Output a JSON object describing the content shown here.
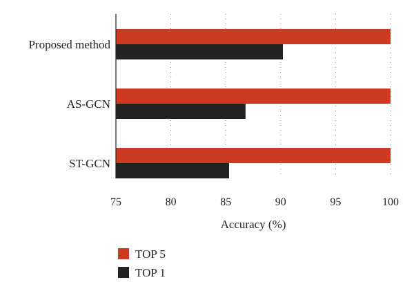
{
  "chart_data": {
    "type": "bar",
    "orientation": "horizontal",
    "categories": [
      "Proposed method",
      "AS-GCN",
      "ST-GCN"
    ],
    "series": [
      {
        "name": "TOP 5",
        "values": [
          100,
          100,
          100
        ],
        "color": "#cc3a22"
      },
      {
        "name": "TOP 1",
        "values": [
          90.2,
          86.8,
          85.3
        ],
        "color": "#222222"
      }
    ],
    "xlabel": "Accuracy (%)",
    "ylabel": "",
    "title": "",
    "xlim": [
      75,
      100
    ],
    "xticks": [
      "75",
      "80",
      "85",
      "90",
      "95",
      "100"
    ],
    "grid": "vertical dotted",
    "legend_position": "bottom-left"
  }
}
